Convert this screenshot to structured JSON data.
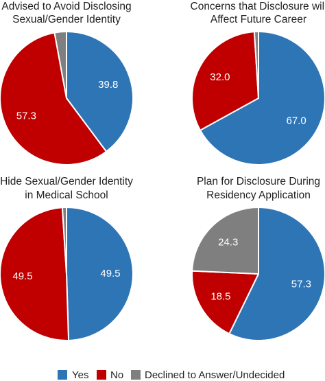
{
  "colors": {
    "yes": "#2e75b6",
    "no": "#c00000",
    "declined": "#7f7f7f",
    "border": "#ffffff"
  },
  "legend": {
    "items": [
      {
        "key": "yes",
        "label": "Yes"
      },
      {
        "key": "no",
        "label": "No"
      },
      {
        "key": "declined",
        "label": "Declined to Answer/Undecided"
      }
    ]
  },
  "chart_data": [
    {
      "type": "pie",
      "title_lines": [
        "Advised to Avoid Disclosing",
        "Sexual/Gender Identity"
      ],
      "slices": [
        {
          "key": "yes",
          "value": 39.8,
          "label": "39.8"
        },
        {
          "key": "no",
          "value": 57.3,
          "label": "57.3"
        },
        {
          "key": "declined",
          "value": 2.9,
          "label": ""
        }
      ]
    },
    {
      "type": "pie",
      "title_lines": [
        "Concerns that Disclosure will",
        "Affect Future Career"
      ],
      "slices": [
        {
          "key": "yes",
          "value": 67.0,
          "label": "67.0"
        },
        {
          "key": "no",
          "value": 32.0,
          "label": "32.0"
        },
        {
          "key": "declined",
          "value": 1.0,
          "label": ""
        }
      ]
    },
    {
      "type": "pie",
      "title_lines": [
        "Hide Sexual/Gender Identity",
        "in Medical School"
      ],
      "slices": [
        {
          "key": "yes",
          "value": 49.5,
          "label": "49.5"
        },
        {
          "key": "no",
          "value": 49.5,
          "label": "49.5"
        },
        {
          "key": "declined",
          "value": 1.0,
          "label": ""
        }
      ]
    },
    {
      "type": "pie",
      "title_lines": [
        "Plan for Disclosure During",
        "Residency Application"
      ],
      "slices": [
        {
          "key": "yes",
          "value": 57.3,
          "label": "57.3"
        },
        {
          "key": "no",
          "value": 18.5,
          "label": "18.5"
        },
        {
          "key": "declined",
          "value": 24.3,
          "label": "24.3"
        }
      ]
    }
  ]
}
